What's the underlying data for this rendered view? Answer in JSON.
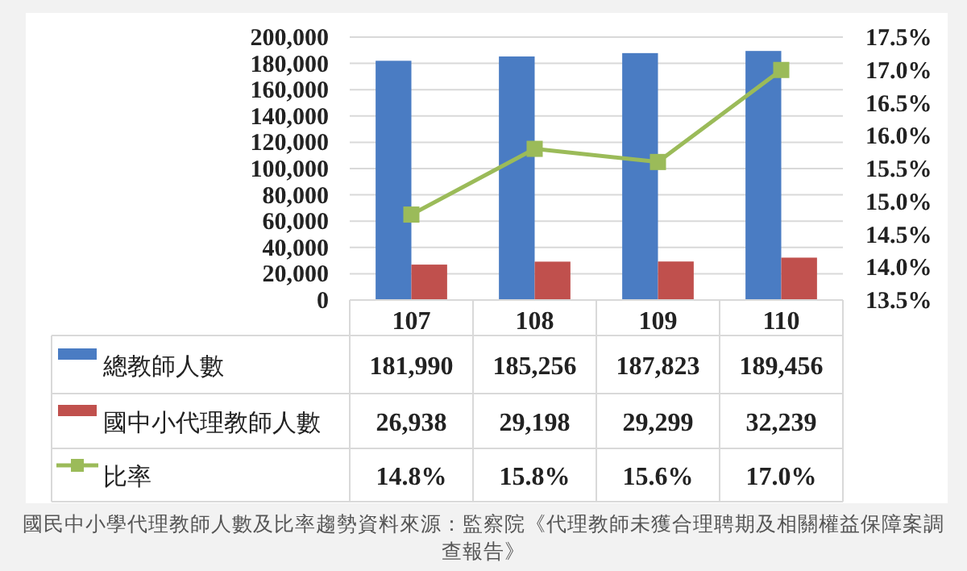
{
  "chart_data": {
    "type": "bar",
    "categories": [
      "107",
      "108",
      "109",
      "110"
    ],
    "series": [
      {
        "name": "總教師人數",
        "color": "#4a7cc3",
        "values": [
          181990,
          185256,
          187823,
          189456
        ],
        "value_labels": [
          "181,990",
          "185,256",
          "187,823",
          "189,456"
        ]
      },
      {
        "name": "國中小代理教師人數",
        "color": "#c0504d",
        "values": [
          26938,
          29198,
          29299,
          32239
        ],
        "value_labels": [
          "26,938",
          "29,198",
          "29,299",
          "32,239"
        ]
      },
      {
        "name": "比率",
        "type": "line",
        "axis": "y2",
        "color": "#9bbb59",
        "values": [
          14.8,
          15.8,
          15.6,
          17.0
        ],
        "value_labels": [
          "14.8%",
          "15.8%",
          "15.6%",
          "17.0%"
        ]
      }
    ],
    "ylim": [
      0,
      200000
    ],
    "yticks": [
      0,
      {
        "value": 20000,
        "label": "20,000"
      },
      {
        "value": 40000,
        "label": "40,000"
      },
      {
        "value": 60000,
        "label": "60,000"
      },
      {
        "value": 80000,
        "label": "80,000"
      },
      {
        "value": 100000,
        "label": "100,000"
      },
      {
        "value": 120000,
        "label": "120,000"
      },
      {
        "value": 140000,
        "label": "140,000"
      },
      {
        "value": 160000,
        "label": "160,000"
      },
      {
        "value": 180000,
        "label": "180,000"
      },
      {
        "value": 200000,
        "label": "200,000"
      }
    ],
    "y2lim": [
      13.5,
      17.5
    ],
    "y2ticks": [
      {
        "value": 13.5,
        "label": "13.5%"
      },
      {
        "value": 14.0,
        "label": "14.0%"
      },
      {
        "value": 14.5,
        "label": "14.5%"
      },
      {
        "value": 15.0,
        "label": "15.0%"
      },
      {
        "value": 15.5,
        "label": "15.5%"
      },
      {
        "value": 16.0,
        "label": "16.0%"
      },
      {
        "value": 16.5,
        "label": "16.5%"
      },
      {
        "value": 17.0,
        "label": "17.0%"
      },
      {
        "value": 17.5,
        "label": "17.5%"
      }
    ],
    "grid": "y",
    "legend": "bottom",
    "marker": "square",
    "annotations": [
      "國民中小學代理教師人數及比率趨勢資料來源：監察院《代理教師未獲合理聘期及相關權益保障案調查報告》"
    ]
  }
}
